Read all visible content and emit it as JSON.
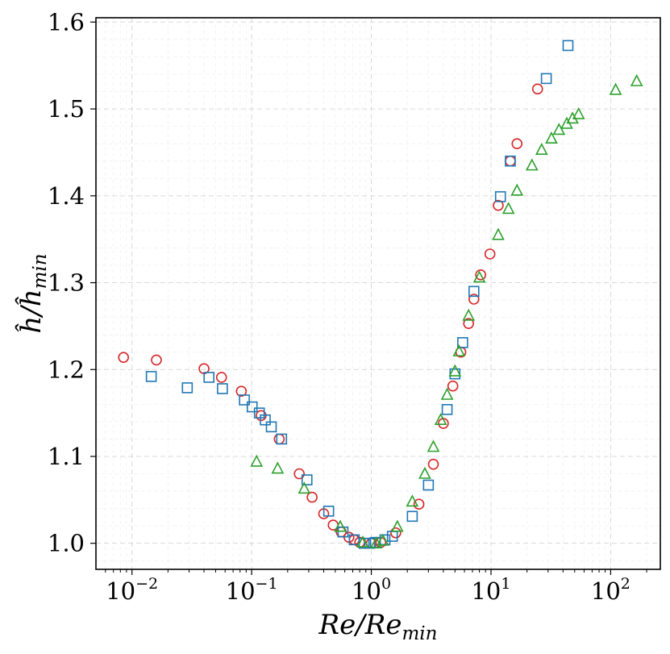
{
  "chart_data": {
    "type": "scatter",
    "title": "",
    "xlabel": "Re/Re_min",
    "ylabel": "ĥ/ĥ_min",
    "xscale": "log",
    "xlim": [
      0.005,
      260
    ],
    "ylim": [
      0.97,
      1.605
    ],
    "grid": true,
    "legend": "none",
    "x_ticks": [
      {
        "value": 0.01,
        "base": "10",
        "exp": "−2"
      },
      {
        "value": 0.1,
        "base": "10",
        "exp": "−1"
      },
      {
        "value": 1,
        "base": "10",
        "exp": "0"
      },
      {
        "value": 10,
        "base": "10",
        "exp": "1"
      },
      {
        "value": 100,
        "base": "10",
        "exp": "2"
      }
    ],
    "y_ticks": [
      {
        "value": 1.0,
        "label": "1.0"
      },
      {
        "value": 1.1,
        "label": "1.1"
      },
      {
        "value": 1.2,
        "label": "1.2"
      },
      {
        "value": 1.3,
        "label": "1.3"
      },
      {
        "value": 1.4,
        "label": "1.4"
      },
      {
        "value": 1.5,
        "label": "1.5"
      },
      {
        "value": 1.6,
        "label": "1.6"
      }
    ],
    "series": [
      {
        "name": "circles",
        "marker": "circle",
        "color": "#d62728",
        "points": [
          [
            0.0085,
            1.214
          ],
          [
            0.016,
            1.211
          ],
          [
            0.04,
            1.201
          ],
          [
            0.056,
            1.191
          ],
          [
            0.082,
            1.175
          ],
          [
            0.12,
            1.147
          ],
          [
            0.17,
            1.12
          ],
          [
            0.25,
            1.08
          ],
          [
            0.32,
            1.053
          ],
          [
            0.4,
            1.034
          ],
          [
            0.48,
            1.021
          ],
          [
            0.56,
            1.013
          ],
          [
            0.65,
            1.007
          ],
          [
            0.72,
            1.004
          ],
          [
            0.8,
            1.001
          ],
          [
            1.0,
            1.0
          ],
          [
            1.2,
            1.001
          ],
          [
            1.6,
            1.012
          ],
          [
            2.5,
            1.045
          ],
          [
            3.3,
            1.091
          ],
          [
            4.0,
            1.138
          ],
          [
            4.8,
            1.181
          ],
          [
            5.6,
            1.22
          ],
          [
            6.5,
            1.253
          ],
          [
            7.2,
            1.281
          ],
          [
            8.2,
            1.309
          ],
          [
            9.8,
            1.333
          ],
          [
            11.5,
            1.389
          ],
          [
            14.5,
            1.44
          ],
          [
            16.5,
            1.46
          ],
          [
            24.5,
            1.523
          ]
        ]
      },
      {
        "name": "squares",
        "marker": "square",
        "color": "#1f77b4",
        "points": [
          [
            0.0145,
            1.192
          ],
          [
            0.029,
            1.179
          ],
          [
            0.044,
            1.191
          ],
          [
            0.057,
            1.178
          ],
          [
            0.087,
            1.165
          ],
          [
            0.101,
            1.157
          ],
          [
            0.116,
            1.15
          ],
          [
            0.13,
            1.142
          ],
          [
            0.146,
            1.134
          ],
          [
            0.178,
            1.12
          ],
          [
            0.29,
            1.073
          ],
          [
            0.44,
            1.037
          ],
          [
            0.58,
            1.013
          ],
          [
            0.72,
            1.004
          ],
          [
            0.87,
            1.0
          ],
          [
            0.97,
            1.0
          ],
          [
            1.08,
            1.001
          ],
          [
            1.3,
            1.004
          ],
          [
            1.5,
            1.008
          ],
          [
            2.2,
            1.031
          ],
          [
            3.0,
            1.067
          ],
          [
            4.3,
            1.154
          ],
          [
            5.0,
            1.195
          ],
          [
            5.8,
            1.231
          ],
          [
            7.2,
            1.29
          ],
          [
            12.0,
            1.399
          ],
          [
            14.5,
            1.44
          ],
          [
            29.0,
            1.535
          ],
          [
            44.0,
            1.573
          ]
        ]
      },
      {
        "name": "triangles",
        "marker": "triangle",
        "color": "#2ca02c",
        "points": [
          [
            0.11,
            1.094
          ],
          [
            0.165,
            1.086
          ],
          [
            0.275,
            1.063
          ],
          [
            0.55,
            1.019
          ],
          [
            0.85,
            1.001
          ],
          [
            1.1,
            1.0
          ],
          [
            1.25,
            1.003
          ],
          [
            1.65,
            1.019
          ],
          [
            2.2,
            1.048
          ],
          [
            2.8,
            1.08
          ],
          [
            3.3,
            1.111
          ],
          [
            3.8,
            1.142
          ],
          [
            4.3,
            1.171
          ],
          [
            5.0,
            1.198
          ],
          [
            5.4,
            1.221
          ],
          [
            6.5,
            1.262
          ],
          [
            8.0,
            1.306
          ],
          [
            11.5,
            1.355
          ],
          [
            14.0,
            1.385
          ],
          [
            16.5,
            1.406
          ],
          [
            22.0,
            1.435
          ],
          [
            26.5,
            1.453
          ],
          [
            32.0,
            1.466
          ],
          [
            37.0,
            1.476
          ],
          [
            43.0,
            1.483
          ],
          [
            48.0,
            1.489
          ],
          [
            54.0,
            1.494
          ],
          [
            110.0,
            1.522
          ],
          [
            165.0,
            1.532
          ]
        ]
      }
    ]
  }
}
